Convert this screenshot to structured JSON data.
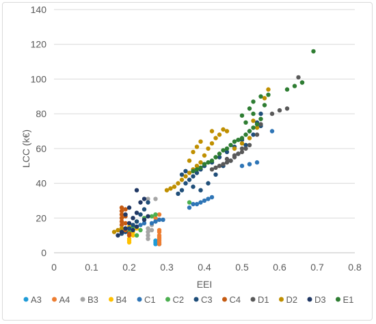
{
  "chart_data": {
    "type": "scatter",
    "title": "",
    "xlabel": "EEI",
    "ylabel": "LCC (k€)",
    "xlim": [
      0,
      0.8
    ],
    "ylim": [
      0,
      140
    ],
    "x_ticks": [
      0,
      0.1,
      0.2,
      0.3,
      0.4,
      0.5,
      0.6,
      0.7,
      0.8
    ],
    "y_ticks": [
      0,
      20,
      40,
      60,
      80,
      100,
      120,
      140
    ],
    "x_tick_labels": [
      "0",
      "0.1",
      "0.2",
      "0.3",
      "0.4",
      "0.5",
      "0.6",
      "0.7",
      "0.8"
    ],
    "y_tick_labels": [
      "0",
      "20",
      "40",
      "60",
      "80",
      "100",
      "120",
      "140"
    ],
    "grid": "horizontal",
    "legend_position": "bottom",
    "series": [
      {
        "name": "A3",
        "color": "#1f9bd7",
        "points": [
          [
            0.27,
            5
          ],
          [
            0.27,
            6
          ],
          [
            0.28,
            5
          ],
          [
            0.27,
            7
          ]
        ]
      },
      {
        "name": "A4",
        "color": "#ed7d31",
        "points": [
          [
            0.28,
            5
          ],
          [
            0.28,
            6
          ],
          [
            0.28,
            7
          ],
          [
            0.28,
            8
          ],
          [
            0.28,
            9
          ],
          [
            0.28,
            10
          ],
          [
            0.28,
            12
          ],
          [
            0.28,
            22
          ],
          [
            0.27,
            20
          ],
          [
            0.28,
            13
          ]
        ]
      },
      {
        "name": "B3",
        "color": "#a5a5a5",
        "points": [
          [
            0.25,
            8
          ],
          [
            0.25,
            10
          ],
          [
            0.25,
            12
          ],
          [
            0.25,
            14
          ],
          [
            0.26,
            16
          ],
          [
            0.25,
            31
          ],
          [
            0.27,
            31
          ],
          [
            0.27,
            18
          ],
          [
            0.26,
            13
          ]
        ]
      },
      {
        "name": "B4",
        "color": "#ffc000",
        "points": [
          [
            0.2,
            6
          ],
          [
            0.2,
            7
          ],
          [
            0.2,
            8
          ],
          [
            0.21,
            10
          ],
          [
            0.21,
            12
          ],
          [
            0.22,
            14
          ],
          [
            0.2,
            15
          ],
          [
            0.22,
            10
          ]
        ]
      },
      {
        "name": "C1",
        "color": "#2e75b6",
        "points": [
          [
            0.26,
            17
          ],
          [
            0.27,
            18
          ],
          [
            0.28,
            19
          ],
          [
            0.29,
            19
          ],
          [
            0.36,
            26
          ],
          [
            0.37,
            28
          ],
          [
            0.38,
            28
          ],
          [
            0.39,
            29
          ],
          [
            0.4,
            30
          ],
          [
            0.41,
            31
          ],
          [
            0.42,
            32
          ],
          [
            0.5,
            50
          ],
          [
            0.52,
            51
          ],
          [
            0.54,
            52
          ],
          [
            0.58,
            70
          ],
          [
            0.24,
            17
          ],
          [
            0.23,
            16
          ]
        ]
      },
      {
        "name": "C2",
        "color": "#4caf50",
        "points": [
          [
            0.2,
            12
          ],
          [
            0.21,
            15
          ],
          [
            0.22,
            18
          ],
          [
            0.22,
            10
          ],
          [
            0.23,
            13
          ],
          [
            0.24,
            20
          ],
          [
            0.26,
            21
          ],
          [
            0.27,
            22
          ],
          [
            0.36,
            29
          ]
        ]
      },
      {
        "name": "C3",
        "color": "#1f4e79",
        "points": [
          [
            0.18,
            11
          ],
          [
            0.19,
            12
          ],
          [
            0.2,
            14
          ],
          [
            0.21,
            16
          ],
          [
            0.22,
            18
          ],
          [
            0.23,
            22
          ],
          [
            0.24,
            25
          ],
          [
            0.25,
            29
          ],
          [
            0.33,
            34
          ],
          [
            0.34,
            36
          ],
          [
            0.35,
            40
          ],
          [
            0.36,
            42
          ],
          [
            0.37,
            44
          ],
          [
            0.38,
            46
          ],
          [
            0.39,
            48
          ],
          [
            0.4,
            50
          ],
          [
            0.42,
            52
          ],
          [
            0.44,
            55
          ],
          [
            0.46,
            58
          ],
          [
            0.48,
            61
          ],
          [
            0.5,
            65
          ],
          [
            0.52,
            70
          ],
          [
            0.54,
            75
          ],
          [
            0.55,
            80
          ],
          [
            0.34,
            45
          ],
          [
            0.35,
            47
          ],
          [
            0.37,
            38
          ],
          [
            0.39,
            36
          ],
          [
            0.41,
            40
          ],
          [
            0.43,
            45
          ],
          [
            0.45,
            50
          ],
          [
            0.47,
            53
          ],
          [
            0.49,
            57
          ],
          [
            0.51,
            62
          ],
          [
            0.53,
            68
          ],
          [
            0.55,
            73
          ]
        ]
      },
      {
        "name": "C4",
        "color": "#c55a11",
        "points": [
          [
            0.18,
            12
          ],
          [
            0.18,
            14
          ],
          [
            0.18,
            16
          ],
          [
            0.18,
            18
          ],
          [
            0.18,
            20
          ],
          [
            0.18,
            22
          ],
          [
            0.18,
            24
          ],
          [
            0.18,
            26
          ],
          [
            0.19,
            25
          ],
          [
            0.19,
            21
          ],
          [
            0.19,
            17
          ],
          [
            0.19,
            13
          ],
          [
            0.2,
            10
          ],
          [
            0.2,
            11
          ]
        ]
      },
      {
        "name": "D1",
        "color": "#595959",
        "points": [
          [
            0.42,
            48
          ],
          [
            0.43,
            49
          ],
          [
            0.44,
            50
          ],
          [
            0.45,
            51
          ],
          [
            0.46,
            52
          ],
          [
            0.47,
            53
          ],
          [
            0.48,
            55
          ],
          [
            0.49,
            57
          ],
          [
            0.5,
            58
          ],
          [
            0.51,
            60
          ],
          [
            0.52,
            62
          ],
          [
            0.54,
            68
          ],
          [
            0.55,
            74
          ],
          [
            0.58,
            80
          ],
          [
            0.6,
            82
          ],
          [
            0.62,
            83
          ],
          [
            0.65,
            101
          ],
          [
            0.66,
            98
          ],
          [
            0.46,
            54
          ],
          [
            0.48,
            56
          ],
          [
            0.5,
            60
          ]
        ]
      },
      {
        "name": "D2",
        "color": "#bf8f00",
        "points": [
          [
            0.16,
            12
          ],
          [
            0.17,
            13
          ],
          [
            0.18,
            14
          ],
          [
            0.3,
            36
          ],
          [
            0.31,
            37
          ],
          [
            0.32,
            38
          ],
          [
            0.33,
            40
          ],
          [
            0.34,
            42
          ],
          [
            0.35,
            44
          ],
          [
            0.36,
            46
          ],
          [
            0.37,
            48
          ],
          [
            0.38,
            50
          ],
          [
            0.39,
            52
          ],
          [
            0.4,
            56
          ],
          [
            0.41,
            60
          ],
          [
            0.42,
            63
          ],
          [
            0.42,
            70
          ],
          [
            0.43,
            66
          ],
          [
            0.44,
            68
          ],
          [
            0.45,
            71
          ],
          [
            0.46,
            70
          ],
          [
            0.36,
            53
          ],
          [
            0.37,
            58
          ],
          [
            0.38,
            61
          ],
          [
            0.39,
            64
          ],
          [
            0.48,
            60
          ],
          [
            0.5,
            63
          ],
          [
            0.52,
            66
          ],
          [
            0.54,
            72
          ],
          [
            0.56,
            89
          ],
          [
            0.57,
            94
          ],
          [
            0.53,
            76
          ]
        ]
      },
      {
        "name": "D3",
        "color": "#203864",
        "points": [
          [
            0.17,
            10
          ],
          [
            0.18,
            12
          ],
          [
            0.19,
            14
          ],
          [
            0.2,
            17
          ],
          [
            0.21,
            20
          ],
          [
            0.22,
            23
          ],
          [
            0.23,
            29
          ],
          [
            0.22,
            36
          ],
          [
            0.24,
            31
          ],
          [
            0.19,
            22
          ],
          [
            0.2,
            26
          ],
          [
            0.21,
            13
          ],
          [
            0.22,
            15
          ],
          [
            0.24,
            19
          ],
          [
            0.25,
            21
          ]
        ]
      },
      {
        "name": "E1",
        "color": "#2e7d32",
        "points": [
          [
            0.37,
            47
          ],
          [
            0.38,
            48
          ],
          [
            0.39,
            49
          ],
          [
            0.4,
            51
          ],
          [
            0.41,
            52
          ],
          [
            0.42,
            53
          ],
          [
            0.43,
            55
          ],
          [
            0.44,
            57
          ],
          [
            0.45,
            59
          ],
          [
            0.46,
            60
          ],
          [
            0.47,
            62
          ],
          [
            0.48,
            64
          ],
          [
            0.49,
            65
          ],
          [
            0.5,
            66
          ],
          [
            0.51,
            68
          ],
          [
            0.52,
            70
          ],
          [
            0.53,
            72
          ],
          [
            0.54,
            74
          ],
          [
            0.55,
            77
          ],
          [
            0.5,
            79
          ],
          [
            0.52,
            83
          ],
          [
            0.53,
            87
          ],
          [
            0.55,
            90
          ],
          [
            0.57,
            91
          ],
          [
            0.62,
            94
          ],
          [
            0.64,
            96
          ],
          [
            0.66,
            98
          ],
          [
            0.69,
            116
          ],
          [
            0.51,
            75
          ],
          [
            0.53,
            80
          ],
          [
            0.56,
            85
          ]
        ]
      }
    ]
  }
}
